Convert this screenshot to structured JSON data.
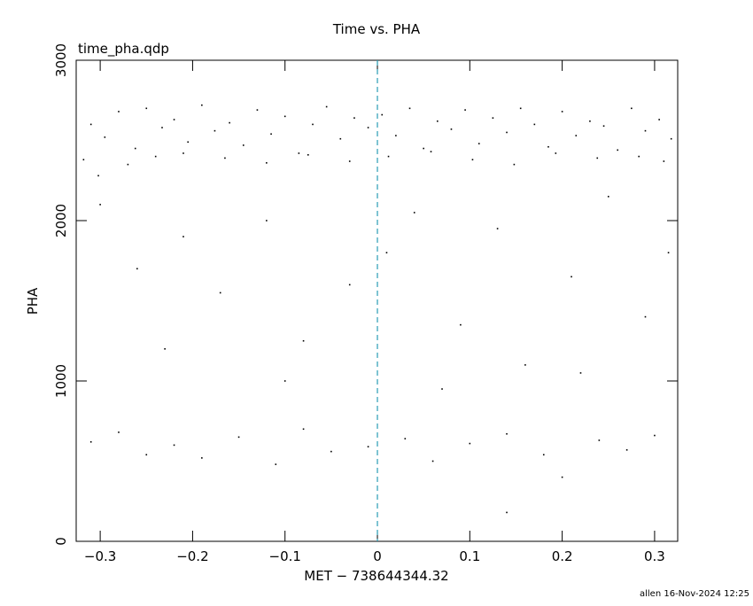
{
  "chart_data": {
    "type": "scatter",
    "title": "Time vs. PHA",
    "subtitle": "time_pha.qdp",
    "x_label": "MET − 738644344.32",
    "y_label": "PHA",
    "footer": "allen 16-Nov-2024 12:25",
    "xlim": [
      -0.326,
      0.325
    ],
    "ylim": [
      0,
      3000
    ],
    "xticks": [
      {
        "value": -0.3,
        "label": "−0.3"
      },
      {
        "value": -0.2,
        "label": "−0.2"
      },
      {
        "value": -0.1,
        "label": "−0.1"
      },
      0,
      0.1,
      0.2,
      0.3
    ],
    "yticks": [
      0,
      1000,
      2000,
      3000
    ],
    "color": "#000000",
    "vline": 0,
    "vline_color": "#2a9db5",
    "x": [
      -0.31,
      -0.295,
      -0.28,
      -0.262,
      -0.25,
      -0.233,
      -0.22,
      -0.205,
      -0.19,
      -0.176,
      -0.16,
      -0.145,
      -0.13,
      -0.115,
      -0.1,
      -0.085,
      -0.07,
      -0.055,
      -0.04,
      -0.025,
      -0.01,
      0.005,
      0.02,
      0.035,
      0.05,
      0.065,
      0.08,
      0.095,
      0.11,
      0.125,
      0.14,
      0.155,
      0.17,
      0.185,
      0.2,
      0.215,
      0.23,
      0.245,
      0.26,
      0.275,
      0.29,
      0.305,
      0.318,
      -0.318,
      -0.27,
      -0.24,
      -0.21,
      -0.165,
      -0.12,
      -0.075,
      -0.03,
      0.012,
      0.058,
      0.103,
      0.148,
      0.193,
      0.238,
      0.283,
      0.31,
      -0.302,
      -0.3,
      -0.26,
      -0.21,
      -0.17,
      -0.12,
      -0.08,
      -0.03,
      0.01,
      0.04,
      0.09,
      0.13,
      0.16,
      0.21,
      0.25,
      0.29,
      0.315,
      -0.23,
      -0.1,
      0.07,
      0.22,
      -0.31,
      -0.28,
      -0.25,
      -0.22,
      -0.19,
      -0.15,
      -0.11,
      -0.08,
      -0.05,
      -0.01,
      0.03,
      0.06,
      0.1,
      0.14,
      0.18,
      0.2,
      0.24,
      0.27,
      0.3,
      0.14
    ],
    "values": [
      2600,
      2520,
      2680,
      2450,
      2700,
      2580,
      2630,
      2490,
      2720,
      2560,
      2610,
      2470,
      2690,
      2540,
      2650,
      2420,
      2600,
      2710,
      2510,
      2640,
      2580,
      2660,
      2530,
      2700,
      2450,
      2620,
      2570,
      2690,
      2480,
      2640,
      2550,
      2700,
      2600,
      2460,
      2680,
      2530,
      2620,
      2590,
      2440,
      2700,
      2560,
      2630,
      2510,
      2380,
      2350,
      2400,
      2420,
      2390,
      2360,
      2410,
      2370,
      2400,
      2430,
      2380,
      2350,
      2420,
      2390,
      2400,
      2370,
      2280,
      2100,
      1700,
      1900,
      1550,
      2000,
      1250,
      1600,
      1800,
      2050,
      1350,
      1950,
      1100,
      1650,
      2150,
      1400,
      1800,
      1200,
      1000,
      950,
      1050,
      620,
      680,
      540,
      600,
      520,
      650,
      480,
      700,
      560,
      590,
      640,
      500,
      610,
      670,
      540,
      400,
      630,
      570,
      660,
      180
    ]
  }
}
